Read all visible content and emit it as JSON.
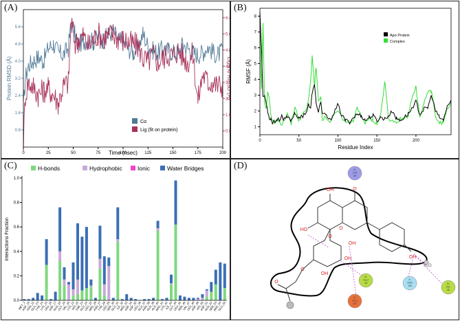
{
  "panels": {
    "a": "(A)",
    "b": "(B)",
    "c": "(C)",
    "d": "(D)"
  },
  "colors": {
    "ca": "#4f7a97",
    "lig": "#a8325a",
    "apo": "#000000",
    "complex": "#33dd33",
    "hbond": "#7fd87f",
    "hydrophobic": "#c9a9d9",
    "ionic": "#ee44cc",
    "water": "#3a6fb5",
    "mol": "#333333",
    "contour": "#000000",
    "oxygen": "#d22222"
  },
  "chart_data": [
    {
      "type": "line",
      "id": "A",
      "xlabel": "Time (nsec)",
      "ylabel": "Protein RMSD (Å)",
      "y2label": "Ligand RMSD (Å)",
      "xlim": [
        0,
        200
      ],
      "xticks": [
        "0",
        "25",
        "50",
        "75",
        "100",
        "125",
        "150",
        "175",
        "200"
      ],
      "ylim": [
        0,
        6.4
      ],
      "yticks": [
        "0.8",
        "1.6",
        "2.4",
        "3.2",
        "4.0",
        "4.8",
        "5.6"
      ],
      "y2lim": [
        0,
        6.8
      ],
      "y2ticks": [
        "0.8",
        "1.6",
        "2.4",
        "3.2",
        "4.0",
        "4.8",
        "5.6",
        "6.4"
      ],
      "legend": [
        "Cα",
        "Lig (fit on protein)"
      ],
      "series": [
        {
          "name": "Cα",
          "x": [
            0,
            2,
            5,
            10,
            15,
            20,
            25,
            30,
            35,
            40,
            45,
            48,
            52,
            55,
            60,
            65,
            70,
            75,
            80,
            85,
            90,
            95,
            100,
            105,
            110,
            115,
            120,
            125,
            130,
            135,
            140,
            145,
            150,
            155,
            160,
            165,
            170,
            175,
            180,
            185,
            190,
            195,
            200
          ],
          "y": [
            1.8,
            3.2,
            3.8,
            4.0,
            4.2,
            4.0,
            4.6,
            4.8,
            4.4,
            4.3,
            4.6,
            5.8,
            5.2,
            4.8,
            4.9,
            5.0,
            4.9,
            5.1,
            5.0,
            5.2,
            5.4,
            5.0,
            4.9,
            4.6,
            4.4,
            4.6,
            5.3,
            4.7,
            4.5,
            4.4,
            4.6,
            4.5,
            4.4,
            4.4,
            4.8,
            4.6,
            4.4,
            4.3,
            4.4,
            4.7,
            4.4,
            4.3,
            4.5
          ]
        },
        {
          "name": "Lig (fit on protein)",
          "x": [
            0,
            2,
            5,
            10,
            15,
            20,
            25,
            30,
            35,
            40,
            45,
            48,
            52,
            55,
            60,
            65,
            70,
            75,
            80,
            85,
            90,
            95,
            100,
            105,
            110,
            115,
            120,
            125,
            130,
            135,
            140,
            145,
            150,
            155,
            160,
            165,
            170,
            175,
            180,
            185,
            190,
            195,
            200
          ],
          "y": [
            0.3,
            2.6,
            3.2,
            3.0,
            2.6,
            2.8,
            2.9,
            2.6,
            2.2,
            3.0,
            3.2,
            6.2,
            5.1,
            5.3,
            5.5,
            5.0,
            5.3,
            5.6,
            5.4,
            5.5,
            5.6,
            5.4,
            5.3,
            5.2,
            5.1,
            5.0,
            4.4,
            4.2,
            4.6,
            4.2,
            4.4,
            4.6,
            4.5,
            4.8,
            4.5,
            4.2,
            4.6,
            2.3,
            3.6,
            3.2,
            3.2,
            3.0,
            3.1
          ]
        }
      ]
    },
    {
      "type": "line",
      "id": "B",
      "xlabel": "Residue Index",
      "ylabel": "RMSF (Å)",
      "xlim": [
        0,
        245
      ],
      "xticks": [
        "0",
        "50",
        "100",
        "150",
        "200"
      ],
      "ylim": [
        0.5,
        8.5
      ],
      "yticks": [
        "1",
        "2",
        "3",
        "4",
        "5",
        "6",
        "7",
        "8"
      ],
      "legend": [
        "Apo Protein",
        "Complex"
      ],
      "series": [
        {
          "name": "Apo Protein",
          "x": [
            0,
            2,
            4,
            6,
            8,
            10,
            12,
            14,
            16,
            18,
            20,
            22,
            25,
            28,
            30,
            35,
            40,
            45,
            50,
            55,
            60,
            62,
            65,
            67,
            70,
            72,
            75,
            78,
            80,
            85,
            90,
            95,
            100,
            105,
            110,
            115,
            120,
            125,
            130,
            135,
            140,
            145,
            150,
            155,
            160,
            165,
            170,
            175,
            180,
            185,
            190,
            195,
            200,
            205,
            210,
            215,
            220,
            225,
            230,
            235,
            240,
            245
          ],
          "y": [
            8.3,
            6.0,
            2.8,
            3.0,
            2.5,
            2.0,
            1.6,
            1.5,
            1.3,
            1.4,
            1.3,
            1.5,
            1.4,
            1.8,
            1.4,
            1.6,
            1.4,
            1.9,
            1.5,
            1.7,
            2.0,
            2.4,
            2.1,
            3.2,
            3.6,
            2.5,
            2.0,
            2.6,
            1.8,
            1.7,
            1.4,
            1.9,
            2.4,
            1.7,
            1.4,
            1.3,
            1.6,
            1.8,
            1.7,
            1.4,
            1.6,
            1.7,
            1.4,
            1.6,
            1.5,
            1.7,
            2.0,
            1.5,
            1.4,
            1.6,
            1.8,
            2.2,
            2.6,
            1.8,
            2.1,
            2.2,
            3.0,
            2.0,
            1.6,
            1.4,
            2.3,
            2.6
          ]
        },
        {
          "name": "Complex",
          "x": [
            0,
            2,
            4,
            6,
            8,
            10,
            12,
            14,
            16,
            18,
            20,
            22,
            25,
            28,
            30,
            35,
            40,
            45,
            50,
            55,
            60,
            62,
            65,
            67,
            70,
            72,
            75,
            78,
            80,
            85,
            90,
            95,
            100,
            105,
            110,
            115,
            120,
            125,
            130,
            135,
            140,
            145,
            150,
            155,
            160,
            165,
            170,
            175,
            180,
            185,
            190,
            195,
            200,
            205,
            210,
            215,
            220,
            225,
            230,
            235,
            240,
            245
          ],
          "y": [
            7.8,
            3.4,
            7.6,
            2.6,
            2.2,
            3.2,
            2.8,
            1.8,
            1.3,
            1.2,
            1.3,
            1.4,
            1.3,
            1.2,
            1.3,
            1.9,
            1.2,
            2.3,
            1.4,
            1.8,
            2.2,
            2.6,
            4.0,
            5.5,
            3.6,
            4.8,
            2.6,
            3.0,
            1.5,
            1.6,
            1.2,
            1.8,
            2.0,
            1.6,
            1.3,
            1.2,
            1.4,
            2.2,
            1.6,
            1.3,
            1.6,
            1.4,
            1.2,
            1.9,
            3.9,
            1.5,
            1.4,
            1.3,
            1.5,
            1.6,
            1.7,
            2.8,
            3.5,
            1.6,
            2.4,
            3.2,
            3.3,
            1.7,
            1.2,
            1.3,
            2.1,
            2.6
          ]
        }
      ]
    },
    {
      "type": "bar",
      "id": "C",
      "stacked": true,
      "ylabel": "Interactions Fraction",
      "ylim": [
        0,
        1.0
      ],
      "yticks": [
        "0.0",
        "0.2",
        "0.4",
        "0.6",
        "0.8",
        "1.0"
      ],
      "legend": [
        "H-bonds",
        "Hydrophobic",
        "Ionic",
        "Water Bridges"
      ],
      "categories": [
        "MET_1",
        "ASP_10",
        "ASN_11",
        "GLU_13",
        "TYR_14",
        "LYS_15",
        "LEU_16",
        "ASP_17",
        "GLN_18",
        "GLY_19",
        "VAL_20",
        "LYS_21",
        "HIS_22",
        "THR_23",
        "GLU_24",
        "LEU_25",
        "ARG_26",
        "ASN_27",
        "TYR_28",
        "LEU_29",
        "SER_30",
        "GLU_31",
        "ILE_32",
        "ARG_33",
        "ASP_34",
        "ASP_35",
        "LEU_36",
        "GLU_37",
        "ASN_38",
        "GLN_39",
        "ALA_40",
        "ARG_41",
        "LYS_42",
        "ILE_43",
        "GLY_44",
        "LEU_45",
        "SER_46",
        "VAL_47",
        "LEU_48",
        "ASP_49",
        "HIS_50",
        "ASP_51",
        "GLN_52",
        "SER_53",
        "ARG_54",
        "GLU_55"
      ],
      "series": [
        {
          "name": "H-bonds",
          "values": [
            0,
            0,
            0,
            0,
            0,
            0.29,
            0,
            0,
            0.32,
            0.12,
            0,
            0.04,
            0.05,
            0.08,
            0.1,
            0.11,
            0,
            0.26,
            0.04,
            0,
            0,
            0.48,
            0,
            0,
            0,
            0,
            0,
            0,
            0,
            0,
            0.57,
            0,
            0,
            0.13,
            0.62,
            0,
            0,
            0,
            0,
            0,
            0,
            0.03,
            0.07,
            0.13,
            0,
            0.1
          ]
        },
        {
          "name": "Hydrophobic",
          "values": [
            0,
            0,
            0,
            0,
            0,
            0,
            0,
            0,
            0.08,
            0.05,
            0.13,
            0.05,
            0.12,
            0,
            0,
            0.01,
            0,
            0.08,
            0.09,
            0.28,
            0,
            0.02,
            0,
            0,
            0,
            0,
            0,
            0,
            0,
            0,
            0.02,
            0,
            0,
            0.01,
            0,
            0,
            0,
            0,
            0,
            0.01,
            0.02,
            0.05,
            0,
            0,
            0,
            0
          ]
        },
        {
          "name": "Ionic",
          "values": [
            0,
            0,
            0,
            0,
            0,
            0,
            0,
            0,
            0,
            0,
            0,
            0,
            0,
            0,
            0,
            0,
            0,
            0,
            0,
            0,
            0,
            0,
            0,
            0,
            0,
            0,
            0,
            0,
            0,
            0,
            0,
            0,
            0,
            0,
            0,
            0,
            0,
            0,
            0,
            0,
            0,
            0,
            0,
            0,
            0,
            0
          ]
        },
        {
          "name": "Water Bridges",
          "values": [
            0.01,
            0.01,
            0.02,
            0.06,
            0.04,
            0.21,
            0.01,
            0.07,
            0.36,
            0.1,
            0.02,
            0.22,
            0.46,
            0.44,
            0.5,
            0.05,
            0.02,
            0.27,
            0.23,
            0.07,
            0.02,
            0.26,
            0.01,
            0.05,
            0.02,
            0.01,
            0,
            0.01,
            0.01,
            0.02,
            0.06,
            0.01,
            0.02,
            0.07,
            0.36,
            0.04,
            0.03,
            0.02,
            0.02,
            0.01,
            0.03,
            0.01,
            0.08,
            0.12,
            0.31,
            0.2
          ]
        }
      ]
    }
  ],
  "diagram": {
    "residues": [
      {
        "name": "A:\nLYS\n45",
        "color": "#9c9ce8"
      },
      {
        "name": "A:\nGLU\n18",
        "color": "#b8dc44"
      },
      {
        "name": "A:\nASN\n100",
        "color": "#a9dff3"
      },
      {
        "name": "A:\nILE\n36",
        "color": "#b8dc44"
      },
      {
        "name": "A:\nGLU\n147",
        "color": "#e8703a"
      }
    ],
    "labels": {
      "oh": "OH",
      "ho": "HO",
      "o": "O",
      "h2o": "H₂O"
    }
  }
}
